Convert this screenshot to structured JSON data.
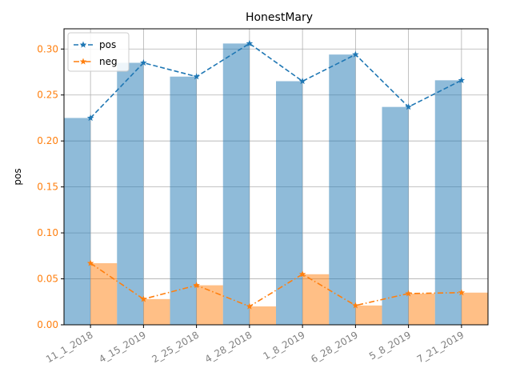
{
  "chart_data": {
    "type": "bar",
    "title": "HonestMary",
    "xlabel": "",
    "ylabel": "pos",
    "ylim": [
      0,
      0.322
    ],
    "yticks": [
      "0.00",
      "0.05",
      "0.10",
      "0.15",
      "0.20",
      "0.25",
      "0.30"
    ],
    "grid": true,
    "legend_position": "top-left",
    "categories": [
      "11_1_2018",
      "4_15_2019",
      "2_25_2018",
      "4_28_2018",
      "1_8_2019",
      "6_28_2019",
      "5_8_2019",
      "7_21_2019"
    ],
    "series": [
      {
        "name": "pos",
        "values": [
          0.225,
          0.285,
          0.27,
          0.306,
          0.265,
          0.294,
          0.237,
          0.266
        ],
        "color": "#1f77b4",
        "bar_color": "#1f77b4",
        "line_style": "dashed",
        "marker": "star"
      },
      {
        "name": "neg",
        "values": [
          0.067,
          0.028,
          0.043,
          0.02,
          0.055,
          0.021,
          0.034,
          0.035
        ],
        "color": "#ff7f0e",
        "bar_color": "#ff7f0e",
        "line_style": "dashdot",
        "marker": "star"
      }
    ]
  }
}
